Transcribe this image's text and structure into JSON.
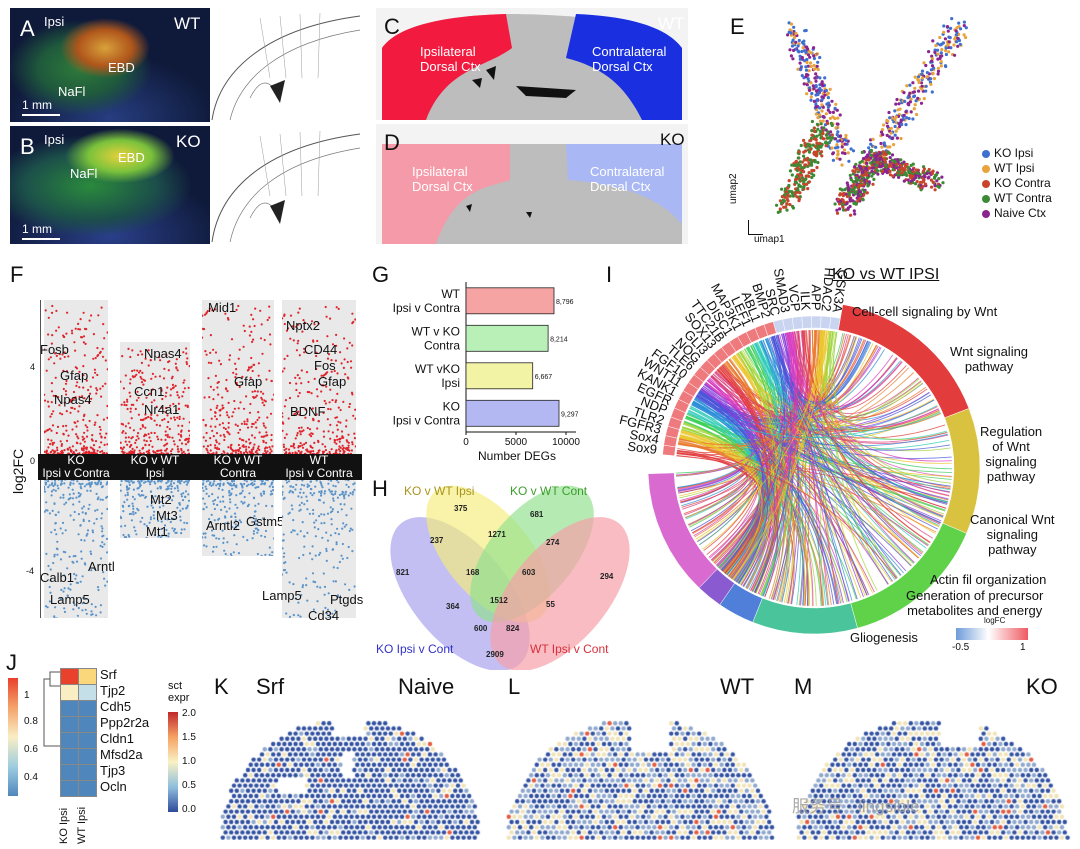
{
  "panel_labels": {
    "A": "A",
    "B": "B",
    "C": "C",
    "D": "D",
    "E": "E",
    "F": "F",
    "G": "G",
    "H": "H",
    "I": "I",
    "J": "J",
    "K": "K",
    "L": "L",
    "M": "M"
  },
  "panelA": {
    "ipsi": "Ipsi",
    "genotype": "WT",
    "ebd": "EBD",
    "nafl": "NaFl",
    "scale": "1 mm"
  },
  "panelB": {
    "ipsi": "Ipsi",
    "genotype": "KO",
    "ebd": "EBD",
    "nafl": "NaFl",
    "scale": "1 mm"
  },
  "panelC": {
    "genotype": "WT",
    "ipsi": "Ipsilateral\nDorsal Ctx",
    "contra": "Contralateral\nDorsal Ctx",
    "colors": {
      "ipsi": "#f21b3f",
      "contra": "#1a2fe0",
      "tissue": "#bdbdbd"
    }
  },
  "panelD": {
    "genotype": "KO",
    "ipsi": "Ipsilateral\nDorsal Ctx",
    "contra": "Contralateral\nDorsal Ctx",
    "colors": {
      "ipsi": "#f59aa8",
      "contra": "#a9b8f5",
      "tissue": "#bdbdbd"
    }
  },
  "panelE": {
    "xlabel": "umap1",
    "ylabel": "umap2",
    "legend": [
      {
        "name": "KO Ipsi",
        "color": "#3f6fcf"
      },
      {
        "name": "WT Ipsi",
        "color": "#e8a33c"
      },
      {
        "name": "KO Contra",
        "color": "#c8442b"
      },
      {
        "name": "WT Contra",
        "color": "#3c8a34"
      },
      {
        "name": "Naive Ctx",
        "color": "#8a2590"
      }
    ]
  },
  "panelF": {
    "ylabel": "log2FC",
    "ticks": [
      "4",
      "0",
      "-4"
    ],
    "groups": [
      {
        "label1": "KO",
        "label2": "Ipsi v Contra",
        "up_genes": [
          "Npas4",
          "Fosb",
          "Gfap"
        ],
        "down_genes": [
          "Arntl",
          "Calb1",
          "Lamp5"
        ]
      },
      {
        "label1": "KO v WT",
        "label2": "Ipsi",
        "up_genes": [
          "Npas4",
          "Ccn1",
          "Nr4a1"
        ],
        "down_genes": [
          "Mt2",
          "Mt3",
          "Mt1"
        ]
      },
      {
        "label1": "KO v WT",
        "label2": "Contra",
        "up_genes": [
          "Mid1",
          "Gfap"
        ],
        "down_genes": [
          "Arntl2",
          "Gstm5"
        ]
      },
      {
        "label1": "WT",
        "label2": "Ipsi v Contra",
        "up_genes": [
          "Nptx2",
          "CD44",
          "Fos",
          "Gfap",
          "BDNF"
        ],
        "down_genes": [
          "Lamp5",
          "Ptgds",
          "Cd34"
        ]
      }
    ],
    "colors": {
      "up": "#e0242c",
      "down": "#5a93c9"
    }
  },
  "chart_data": {
    "type": "bar",
    "orientation": "horizontal",
    "categories": [
      "WT\nIpsi v Contra",
      "WT v KO\nContra",
      "WT vKO\nIpsi",
      "KO\nIpsi v Contra"
    ],
    "values": [
      8796,
      8214,
      6667,
      9297
    ],
    "value_labels": [
      "8,796",
      "8,214",
      "6,667",
      "9,297"
    ],
    "colors": [
      "#f5a3a3",
      "#b8f0b8",
      "#f3f3a6",
      "#b3b8f2"
    ],
    "xlabel": "Number DEGs",
    "xticks": [
      "0",
      "5000",
      "10000"
    ],
    "xlim": [
      0,
      11000
    ]
  },
  "panelH": {
    "sets": [
      {
        "name": "KO v WT Ipsi",
        "color": "#f5ec7a",
        "text_color": "#a8941e"
      },
      {
        "name": "KO v WT Cont",
        "color": "#8ee08a",
        "text_color": "#3c9e2c"
      },
      {
        "name": "KO Ipsi v Cont",
        "color": "#a9a4ee",
        "text_color": "#3232c8"
      },
      {
        "name": "WT Ipsi v Cont",
        "color": "#f5a0a8",
        "text_color": "#d8303c"
      }
    ],
    "counts": [
      "375",
      "681",
      "237",
      "1271",
      "274",
      "821",
      "294",
      "168",
      "603",
      "1512",
      "364",
      "55",
      "600",
      "824",
      "2909"
    ]
  },
  "panelI": {
    "title": "KO vs WT IPSI",
    "genes": [
      "Sox9",
      "Sox4",
      "FGFR3",
      "TLR2",
      "NDP",
      "EGFR",
      "KANK1",
      "WNT11",
      "FGF10",
      "TLE6",
      "NOG",
      "GLI3",
      "SOX13",
      "TTC21B",
      "DISC1",
      "MAP3K1",
      "LEF1",
      "ABL1",
      "BMP2",
      "SRC",
      "SMAD3",
      "VCP",
      "ILK",
      "APP",
      "HDAC2",
      "GSK3A"
    ],
    "terms": [
      {
        "name": "Cell-cell signaling by Wnt",
        "color": "#e23c3c"
      },
      {
        "name": "Wnt signaling\npathway",
        "color": "#d9c23f"
      },
      {
        "name": "Regulation\nof Wnt\nsignaling\npathway",
        "color": "#5fd24a"
      },
      {
        "name": "Canonical Wnt\nsignaling\npathway",
        "color": "#4ac49a"
      },
      {
        "name": "Actin fil organization",
        "color": "#4f7fd8"
      },
      {
        "name": "Generation of precursor\nmetabolites and energy",
        "color": "#8a5ad0"
      },
      {
        "name": "Gliogenesis",
        "color": "#d96ad0"
      }
    ],
    "legend": {
      "title": "logFC",
      "min": "-0.5",
      "max": "1"
    }
  },
  "panelJ": {
    "genes": [
      "Srf",
      "Tjp2",
      "Cdh5",
      "Ppp2r2a",
      "Cldn1",
      "Mfsd2a",
      "Tjp3",
      "Ocln"
    ],
    "columns": [
      "KO Ipsi",
      "WT Ipsi"
    ],
    "colorbar_ticks": [
      "1",
      "0.8",
      "0.6",
      "0.4"
    ]
  },
  "panelK": {
    "gene": "Srf",
    "condition": "Naive",
    "cbar_title": "sct\nexpr",
    "cbar_ticks": [
      "2.0",
      "1.5",
      "1.0",
      "0.5",
      "0.0"
    ]
  },
  "panelL": {
    "condition": "WT"
  },
  "panelM": {
    "condition": "KO"
  },
  "watermark": "服务号 · lingsible"
}
